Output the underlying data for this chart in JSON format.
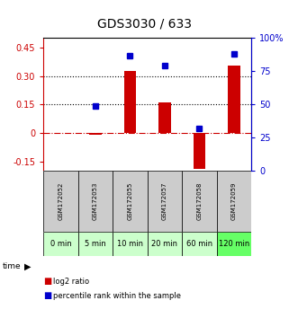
{
  "title": "GDS3030 / 633",
  "samples": [
    "GSM172052",
    "GSM172053",
    "GSM172055",
    "GSM172057",
    "GSM172058",
    "GSM172059"
  ],
  "time_labels": [
    "0 min",
    "5 min",
    "10 min",
    "20 min",
    "60 min",
    "120 min"
  ],
  "log2_ratio": [
    0.0,
    -0.01,
    0.325,
    0.16,
    -0.19,
    0.355
  ],
  "percentile_rank": [
    null,
    49,
    87,
    79,
    32,
    88
  ],
  "ylim_left": [
    -0.2,
    0.5
  ],
  "ylim_right": [
    0,
    100
  ],
  "yticks_left": [
    -0.15,
    0.0,
    0.15,
    0.3,
    0.45
  ],
  "yticks_right": [
    0,
    25,
    50,
    75,
    100
  ],
  "ytick_labels_left": [
    "-0.15",
    "0",
    "0.15",
    "0.30",
    "0.45"
  ],
  "ytick_labels_right": [
    "0",
    "25",
    "50",
    "75",
    "100%"
  ],
  "hlines_dotted": [
    0.15,
    0.3
  ],
  "hline_dashed": 0.0,
  "bar_color": "#cc0000",
  "dot_color": "#0000cc",
  "background_plot": "#ffffff",
  "background_sample": "#cccccc",
  "background_time_light": "#ccffcc",
  "background_time_dark": "#66ff66",
  "title_fontsize": 10,
  "tick_fontsize": 7,
  "sample_fontsize": 5,
  "time_fontsize": 6,
  "legend_fontsize": 6,
  "bar_width": 0.35
}
